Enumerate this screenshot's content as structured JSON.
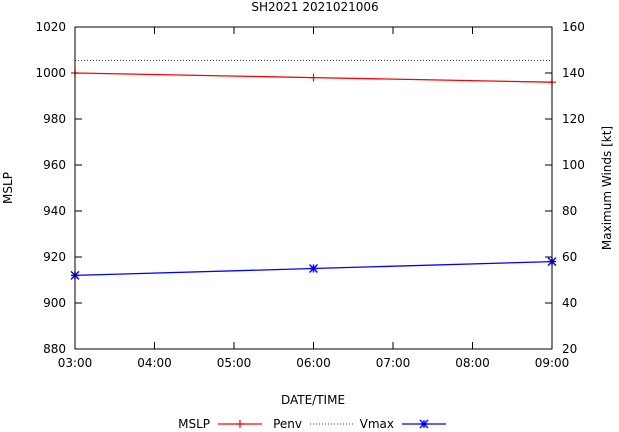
{
  "chart_data": {
    "type": "line",
    "title": "SH2021 2021021006",
    "xlabel": "DATE/TIME",
    "ylabel_left": "MSLP",
    "ylabel_right": "Maximum Winds [kt]",
    "x_ticks": [
      "03:00",
      "04:00",
      "05:00",
      "06:00",
      "07:00",
      "08:00",
      "09:00"
    ],
    "x_range_hours": [
      3,
      9
    ],
    "y_left_range": [
      880,
      1020
    ],
    "y_left_ticks": [
      "880",
      "900",
      "920",
      "940",
      "960",
      "980",
      "1000",
      "1020"
    ],
    "y_right_range": [
      20,
      160
    ],
    "y_right_ticks": [
      "20",
      "40",
      "60",
      "80",
      "100",
      "120",
      "140",
      "160"
    ],
    "series": [
      {
        "name": "MSLP",
        "axis": "left",
        "color": "#ff0000",
        "marker": "plus",
        "x": [
          3,
          6,
          9
        ],
        "values": [
          1000,
          998,
          996
        ]
      },
      {
        "name": "Penv",
        "axis": "left",
        "color": "#000000",
        "style": "dotted",
        "x": [
          3,
          9
        ],
        "values": [
          1005.5,
          1005.5
        ]
      },
      {
        "name": "Vmax",
        "axis": "right",
        "color": "#0000ff",
        "marker": "star",
        "x": [
          3,
          6,
          9
        ],
        "values": [
          52,
          55,
          58
        ]
      }
    ],
    "legend": [
      "MSLP",
      "Penv",
      "Vmax"
    ],
    "legend_position": "bottom"
  }
}
